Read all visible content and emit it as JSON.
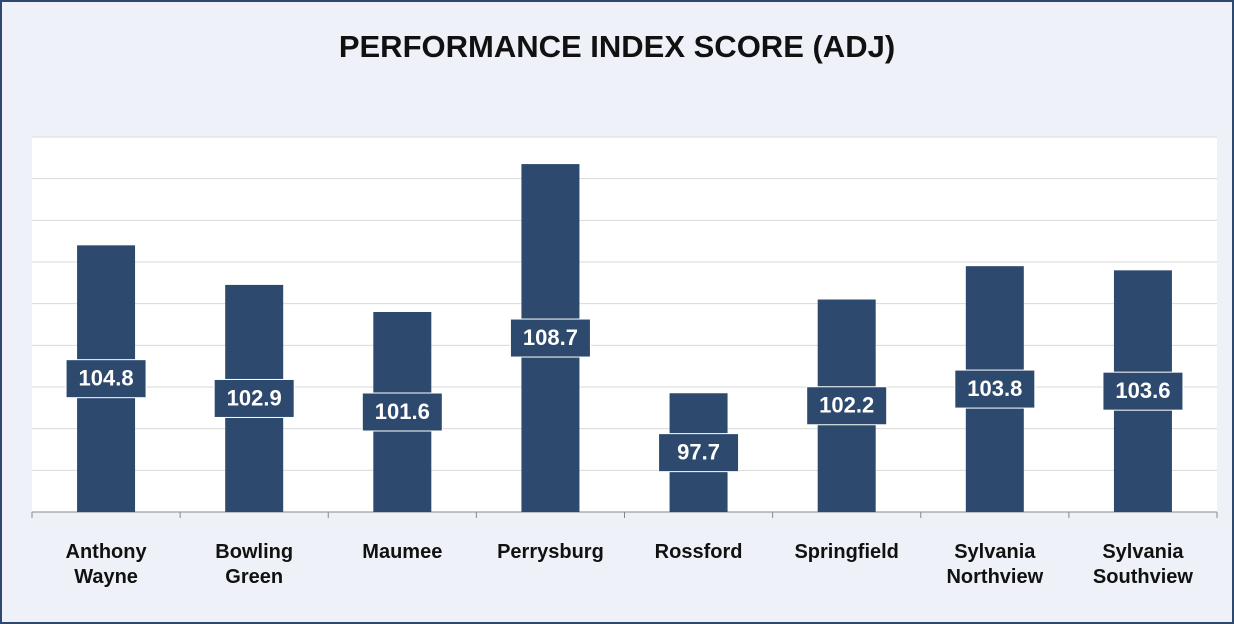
{
  "chart_data": {
    "type": "bar",
    "title": "PERFORMANCE INDEX SCORE (ADJ)",
    "categories": [
      "Anthony Wayne",
      "Bowling Green",
      "Maumee",
      "Perrysburg",
      "Rossford",
      "Springfield",
      "Sylvania Northview",
      "Sylvania Southview"
    ],
    "values": [
      104.8,
      102.9,
      101.6,
      108.7,
      97.7,
      102.2,
      103.8,
      103.6
    ],
    "color": "#2d4a6e",
    "ylim": [
      92,
      110
    ],
    "yticks": [
      92,
      94,
      96,
      98,
      100,
      102,
      104,
      106,
      108,
      110
    ],
    "grid": true
  }
}
